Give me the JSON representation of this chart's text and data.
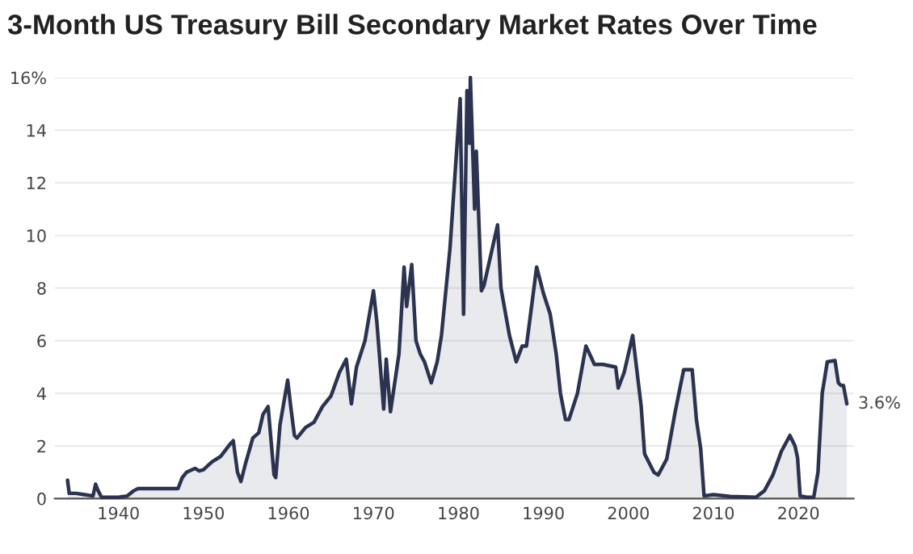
{
  "chart_data": {
    "type": "area",
    "title": "3-Month US Treasury Bill Secondary Market Rates Over Time",
    "x": [
      1934.0,
      1934.2,
      1935,
      1936,
      1937.0,
      1937.3,
      1937.6,
      1938,
      1939,
      1940,
      1941,
      1941.8,
      1942.3,
      1947.0,
      1947.5,
      1948,
      1949,
      1949.5,
      1950,
      1951,
      1952,
      1953.2,
      1953.5,
      1954,
      1954.4,
      1955,
      1955.8,
      1956.5,
      1957,
      1957.6,
      1958.3,
      1958.5,
      1959,
      1959.9,
      1960.3,
      1960.7,
      1961,
      1962,
      1963,
      1964,
      1965,
      1966,
      1966.8,
      1967.4,
      1968,
      1969,
      1970.0,
      1970.4,
      1971.2,
      1971.5,
      1972.0,
      1973.0,
      1973.6,
      1973.9,
      1974.5,
      1975.0,
      1975.5,
      1976,
      1976.8,
      1977.5,
      1978,
      1979,
      1980.2,
      1980.6,
      1981.0,
      1981.3,
      1981.4,
      1981.9,
      1982.1,
      1982.7,
      1983,
      1984.6,
      1985,
      1986,
      1986.8,
      1987.5,
      1988,
      1989.2,
      1990,
      1990.8,
      1991.5,
      1992,
      1992.6,
      1993,
      1994,
      1995,
      1996,
      1997,
      1998.5,
      1998.8,
      1999.5,
      2000.5,
      2001.5,
      2001.9,
      2003,
      2003.5,
      2004.5,
      2005.5,
      2006.5,
      2007.5,
      2008.0,
      2008.5,
      2008.9,
      2010,
      2012,
      2015,
      2016,
      2017,
      2018,
      2019.0,
      2019.6,
      2019.9,
      2020.2,
      2021,
      2021.8,
      2022.3,
      2022.8,
      2023.4,
      2024.3,
      2024.7,
      2025.0,
      2025.3,
      2025.7
    ],
    "series": [
      {
        "color": "#2b3350",
        "values": [
          0.7,
          0.2,
          0.2,
          0.15,
          0.1,
          0.55,
          0.3,
          0.05,
          0.05,
          0.05,
          0.1,
          0.3,
          0.38,
          0.38,
          0.8,
          1.0,
          1.15,
          1.05,
          1.1,
          1.4,
          1.6,
          2.1,
          2.2,
          1.0,
          0.65,
          1.4,
          2.3,
          2.5,
          3.2,
          3.5,
          0.9,
          0.8,
          2.8,
          4.5,
          3.4,
          2.4,
          2.3,
          2.7,
          2.9,
          3.5,
          3.9,
          4.8,
          5.3,
          3.6,
          5.0,
          6.0,
          7.9,
          6.7,
          3.4,
          5.3,
          3.3,
          5.5,
          8.8,
          7.3,
          8.9,
          6.0,
          5.5,
          5.2,
          4.4,
          5.2,
          6.2,
          9.5,
          15.2,
          7.0,
          15.5,
          13.5,
          16.0,
          11.0,
          13.2,
          7.9,
          8.1,
          10.4,
          8.0,
          6.2,
          5.2,
          5.8,
          5.8,
          8.8,
          7.8,
          7.0,
          5.5,
          4.0,
          3.0,
          3.0,
          4.0,
          5.8,
          5.1,
          5.1,
          5.0,
          4.2,
          4.8,
          6.2,
          3.5,
          1.7,
          1.0,
          0.9,
          1.5,
          3.3,
          4.9,
          4.9,
          3.0,
          1.9,
          0.1,
          0.15,
          0.08,
          0.05,
          0.3,
          0.9,
          1.8,
          2.4,
          2.0,
          1.55,
          0.1,
          0.05,
          0.05,
          1.0,
          4.0,
          5.2,
          5.25,
          4.4,
          4.3,
          4.3,
          3.6
        ]
      }
    ],
    "annotations": [
      {
        "text": "3.6%",
        "x": 2025.7,
        "y": 3.6
      }
    ],
    "xlim": [
      1932.5,
      2026.5
    ],
    "xticks": [
      1940,
      1950,
      1960,
      1970,
      1980,
      1990,
      2000,
      2010,
      2020
    ],
    "ylim": [
      0,
      16
    ],
    "yticks": [
      0,
      2,
      4,
      6,
      8,
      10,
      12,
      14,
      {
        "value": 16,
        "label": "16%"
      }
    ],
    "grid": "y"
  }
}
